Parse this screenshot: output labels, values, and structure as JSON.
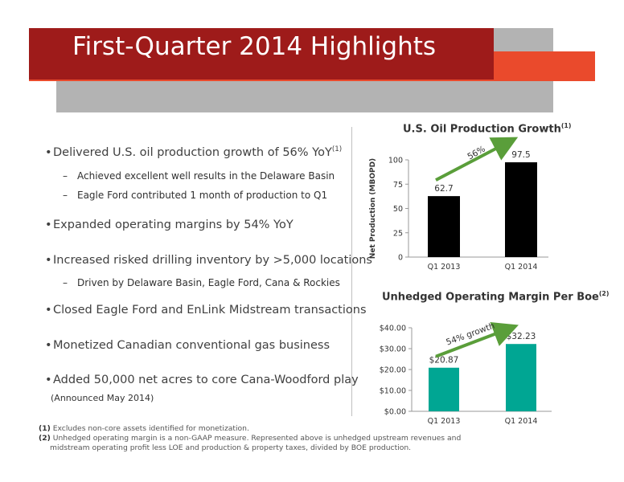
{
  "header": {
    "title": "First-Quarter 2014 Highlights"
  },
  "bullets": [
    {
      "text": "Delivered U.S. oil production growth of 56% YoY",
      "sup": "(1)",
      "subs": [
        "Achieved excellent well results in the Delaware Basin",
        "Eagle Ford contributed 1 month of production to Q1"
      ]
    },
    {
      "text": "Expanded operating margins by 54% YoY",
      "sup": "",
      "subs": []
    },
    {
      "text": "Increased risked drilling inventory by >5,000 locations",
      "sup": "",
      "subs": [
        "Driven by Delaware Basin, Eagle Ford, Cana & Rockies"
      ]
    },
    {
      "text": "Closed Eagle Ford and EnLink Midstream transactions",
      "sup": "",
      "subs": []
    },
    {
      "text": "Monetized Canadian conventional gas business",
      "sup": "",
      "subs": []
    },
    {
      "text": "Added 50,000 net acres to core Cana-Woodford play",
      "sup": "",
      "subs": []
    }
  ],
  "announced_note": "(Announced May 2014)",
  "footnotes": {
    "f1_marker": "(1)",
    "f1_text": "Excludes non-core assets identified for monetization.",
    "f2_marker": "(2)",
    "f2_line1": "Unhedged operating margin is a non-GAAP measure. Represented above is unhedged upstream revenues and",
    "f2_line2": "midstream operating profit less LOE and production & property taxes, divided by BOE production."
  },
  "chart_data": [
    {
      "type": "bar",
      "title": "U.S. Oil Production Growth",
      "title_sup": "(1)",
      "ylabel": "Net Production (MBOPD)",
      "xlabel": "",
      "categories": [
        "Q1 2013",
        "Q1 2014"
      ],
      "values": [
        62.7,
        97.5
      ],
      "value_labels": [
        "62.7",
        "97.5"
      ],
      "yticks": [
        "0",
        "25",
        "50",
        "75",
        "100"
      ],
      "ylim": [
        0,
        100
      ],
      "annotation": "56%",
      "bar_color": "#000000",
      "arrow_color": "#5a9e3a",
      "grid": false
    },
    {
      "type": "bar",
      "title": "Unhedged Operating Margin Per Boe",
      "title_sup": "(2)",
      "ylabel": "",
      "xlabel": "",
      "categories": [
        "Q1 2013",
        "Q1 2014"
      ],
      "values": [
        20.87,
        32.23
      ],
      "value_labels": [
        "$20.87",
        "$32.23"
      ],
      "yticks": [
        "$0.00",
        "$10.00",
        "$20.00",
        "$30.00",
        "$40.00"
      ],
      "ylim": [
        0,
        40
      ],
      "annotation": "54% growth",
      "bar_color": "#00a693",
      "arrow_color": "#5a9e3a",
      "grid": false
    }
  ],
  "colors": {
    "title_red": "#9e1b1a",
    "accent_orange": "#ea4a2c",
    "band_gray": "#b3b3b3"
  }
}
